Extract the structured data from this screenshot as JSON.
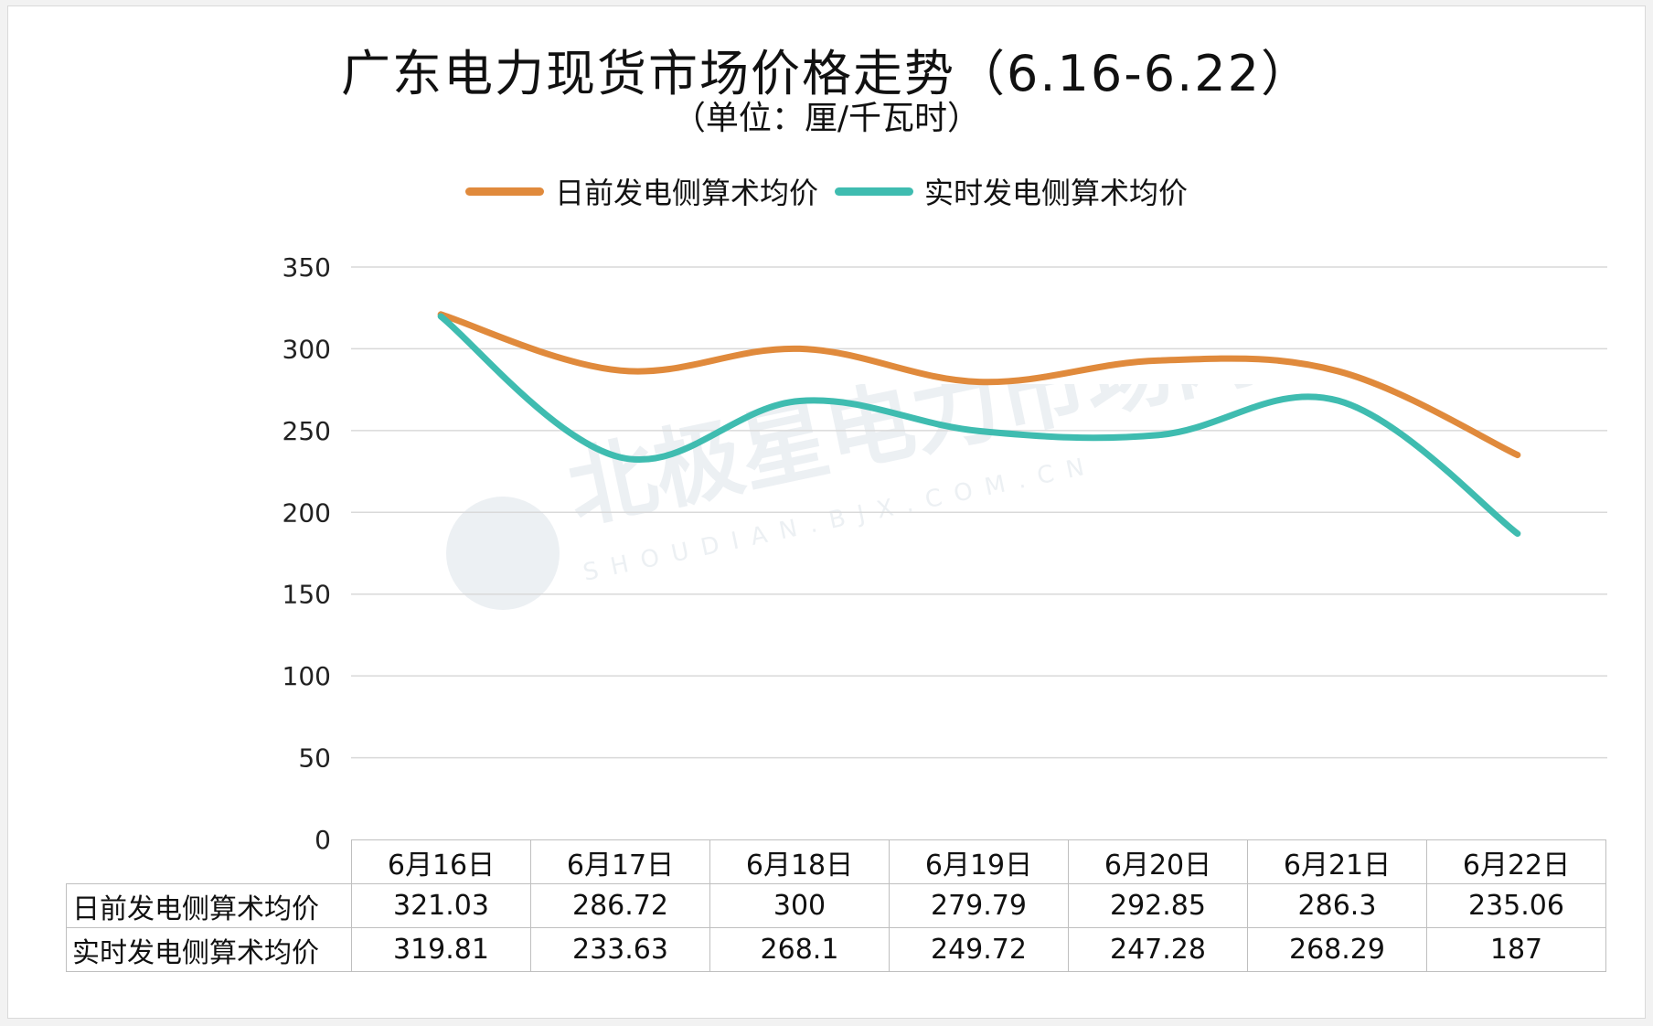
{
  "chart_data": {
    "type": "line",
    "title": "广东电力现货市场价格走势（6.16-6.22）",
    "subtitle": "（单位：厘/千瓦时）",
    "categories": [
      "6月16日",
      "6月17日",
      "6月18日",
      "6月19日",
      "6月20日",
      "6月21日",
      "6月22日"
    ],
    "series": [
      {
        "name": "日前发电侧算术均价",
        "color": "#e08a3c",
        "values": [
          321.03,
          286.72,
          300,
          279.79,
          292.85,
          286.3,
          235.06
        ],
        "labels": [
          "321.03",
          "286.72",
          "300",
          "279.79",
          "292.85",
          "286.3",
          "235.06"
        ]
      },
      {
        "name": "实时发电侧算术均价",
        "color": "#3fbcb0",
        "values": [
          319.81,
          233.63,
          268.1,
          249.72,
          247.28,
          268.29,
          187
        ],
        "labels": [
          "319.81",
          "233.63",
          "268.1",
          "249.72",
          "247.28",
          "268.29",
          "187"
        ]
      }
    ],
    "yticks": [
      "0",
      "50",
      "100",
      "150",
      "200",
      "250",
      "300",
      "350"
    ],
    "ylim": [
      0,
      350
    ],
    "grid": true,
    "legend": "top",
    "data_table": true
  },
  "watermark": {
    "text": "北极星电力市场网",
    "url_text": "SHOUDIAN.BJX.COM.CN",
    "color": "#dde3ea"
  }
}
